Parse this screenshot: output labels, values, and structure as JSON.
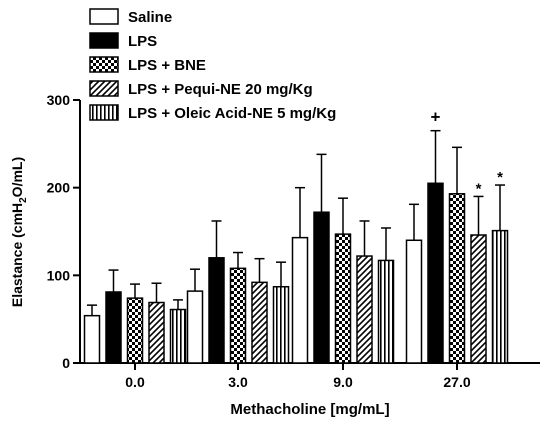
{
  "chart_data": {
    "type": "bar",
    "categories": [
      "0.0",
      "3.0",
      "9.0",
      "27.0"
    ],
    "series": [
      {
        "name": "Saline",
        "pattern": "white",
        "values": [
          54,
          82,
          143,
          140
        ],
        "errors": [
          12,
          25,
          57,
          41
        ]
      },
      {
        "name": "LPS",
        "pattern": "black",
        "values": [
          81,
          120,
          172,
          205
        ],
        "errors": [
          25,
          42,
          66,
          60
        ]
      },
      {
        "name": "LPS + BNE",
        "pattern": "checker",
        "values": [
          74,
          108,
          147,
          193
        ],
        "errors": [
          16,
          18,
          41,
          53
        ]
      },
      {
        "name": "LPS + Pequi-NE 20 mg/Kg",
        "pattern": "diagonal",
        "values": [
          69,
          92,
          122,
          146
        ],
        "errors": [
          22,
          27,
          40,
          44
        ]
      },
      {
        "name": "LPS + Oleic Acid-NE 5 mg/Kg",
        "pattern": "vertical",
        "values": [
          61,
          87,
          117,
          151
        ],
        "errors": [
          11,
          28,
          37,
          52
        ]
      }
    ],
    "xlabel": "Methacholine [mg/mL]",
    "ylabel": "Elastance (cmH",
    "ylabel_sub": "2",
    "ylabel_suffix": "O/mL)",
    "ylim": [
      0,
      300
    ],
    "yticks": [
      "0",
      "100",
      "200",
      "300"
    ],
    "annotations": [
      {
        "text": "+",
        "category": "27.0",
        "series": "LPS"
      },
      {
        "text": "*",
        "category": "27.0",
        "series": "LPS + Pequi-NE 20 mg/Kg"
      },
      {
        "text": "*",
        "category": "27.0",
        "series": "LPS + Oleic Acid-NE 5 mg/Kg"
      }
    ],
    "legend_position": "top-left",
    "grid": false
  }
}
